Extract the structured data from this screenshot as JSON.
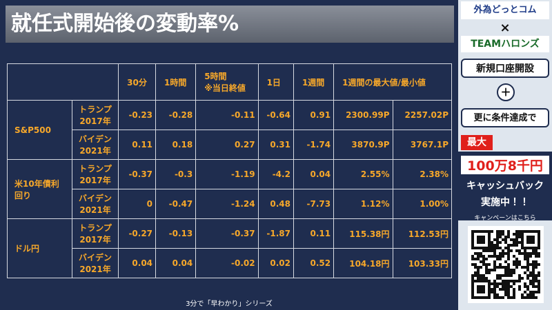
{
  "slide": {
    "title": "就任式開始後の変動率%",
    "footer": "3分で「早わかり」シリーズ"
  },
  "table": {
    "header": [
      [
        "30分"
      ],
      [
        "1時間"
      ],
      [
        "5時間",
        "※当日終値"
      ],
      [
        "1日"
      ],
      [
        "1週間"
      ],
      [
        "1週間の最大値/最小値"
      ]
    ],
    "groups": [
      {
        "label": [
          "S&P500"
        ],
        "rows": [
          {
            "label": [
              "トランプ",
              "2017年"
            ],
            "values": [
              "-0.23",
              "-0.28",
              "-0.11",
              "-0.64",
              "0.91",
              "2300.99P",
              "2257.02P"
            ]
          },
          {
            "label": [
              "バイデン",
              "2021年"
            ],
            "values": [
              "0.11",
              "0.18",
              "0.27",
              "0.31",
              "-1.74",
              "3870.9P",
              "3767.1P"
            ]
          }
        ]
      },
      {
        "label": [
          "米10年債利",
          "回り"
        ],
        "rows": [
          {
            "label": [
              "トランプ",
              "2017年"
            ],
            "values": [
              "-0.37",
              "-0.3",
              "-1.19",
              "-4.2",
              "0.04",
              "2.55%",
              "2.38%"
            ]
          },
          {
            "label": [
              "バイデン",
              "2021年"
            ],
            "values": [
              "0",
              "-0.47",
              "-1.24",
              "0.48",
              "-7.73",
              "1.12%",
              "1.00%"
            ]
          }
        ]
      },
      {
        "label": [
          "ドル円"
        ],
        "rows": [
          {
            "label": [
              "トランプ",
              "2017年"
            ],
            "values": [
              "-0.27",
              "-0.13",
              "-0.37",
              "-1.87",
              "0.11",
              "115.38円",
              "112.53円"
            ]
          },
          {
            "label": [
              "バイデン",
              "2021年"
            ],
            "values": [
              "0.04",
              "0.04",
              "-0.02",
              "0.02",
              "0.52",
              "104.18円",
              "103.33円"
            ]
          }
        ]
      }
    ]
  },
  "sidebar": {
    "brand": "外為どっとコム",
    "cross": "×",
    "partner": "TEAMハロンズ",
    "open_account": "新規口座開設",
    "plus": "＋",
    "condition": "更に条件達成で",
    "max": "最大",
    "amount": "100万8千円",
    "cashback": "キャッシュバック",
    "ongoing": "実施中！！",
    "campaign": "キャンペーンはこちら"
  }
}
